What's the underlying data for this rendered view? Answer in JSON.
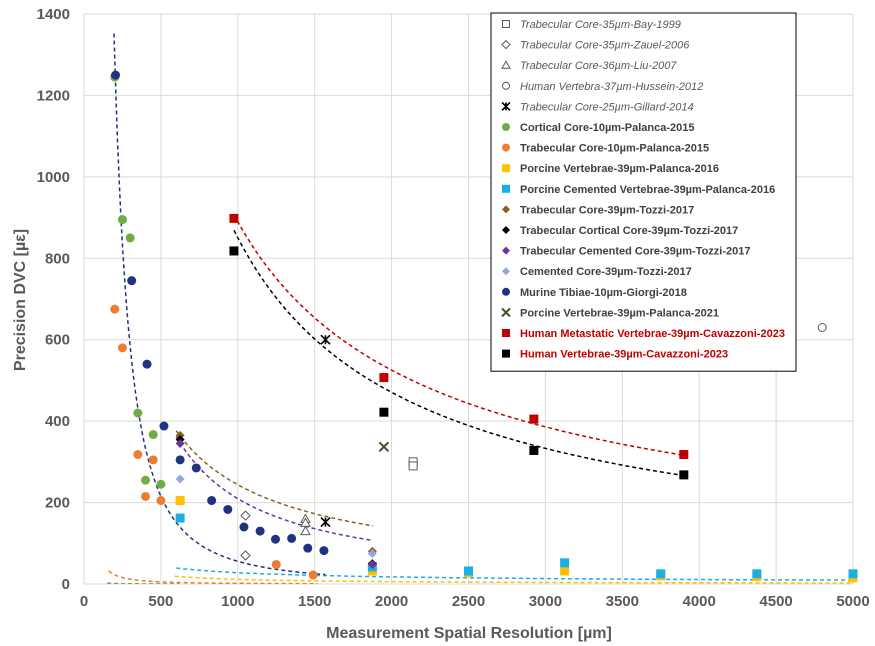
{
  "chart_data": {
    "type": "scatter",
    "xlabel": "Measurement Spatial Resolution [µm]",
    "ylabel": "Precision DVC [µε]",
    "xlim": [
      0,
      5000
    ],
    "ylim": [
      0,
      1400
    ],
    "x_ticks": [
      0,
      500,
      1000,
      1500,
      2000,
      2500,
      3000,
      3500,
      4000,
      4500,
      5000
    ],
    "y_ticks": [
      0,
      200,
      400,
      600,
      800,
      1000,
      1200,
      1400
    ],
    "grid": true,
    "legend_position": "top-right",
    "series": [
      {
        "name": "Trabecular Core-35µm-Bay-1999",
        "marker": "square-open",
        "color": "#595959",
        "italic": true,
        "text_color": "#595959",
        "points": [
          [
            2140,
            300
          ],
          [
            2140,
            290
          ]
        ],
        "fit": null
      },
      {
        "name": "Trabecular Core-35µm-Zauel-2006",
        "marker": "diamond-open",
        "color": "#595959",
        "italic": true,
        "text_color": "#595959",
        "points": [
          [
            1050,
            168
          ],
          [
            1050,
            70
          ]
        ],
        "fit": null
      },
      {
        "name": "Trabecular Core-36µm-Liu-2007",
        "marker": "triangle-open",
        "color": "#595959",
        "italic": true,
        "text_color": "#595959",
        "points": [
          [
            1440,
            160
          ],
          [
            1440,
            150
          ],
          [
            1440,
            130
          ]
        ],
        "fit": null
      },
      {
        "name": "Human Vertebra-37µm-Hussein-2012",
        "marker": "circle-open",
        "color": "#595959",
        "italic": true,
        "text_color": "#595959",
        "points": [
          [
            4800,
            630
          ]
        ],
        "fit": null
      },
      {
        "name": "Trabecular Core-25µm-Gillard-2014",
        "marker": "star",
        "color": "#000000",
        "italic": true,
        "text_color": "#595959",
        "points": [
          [
            1570,
            600
          ],
          [
            1570,
            152
          ]
        ],
        "fit": null
      },
      {
        "name": "Cortical Core-10µm-Palanca-2015",
        "marker": "circle",
        "color": "#70ad47",
        "italic": false,
        "text_color": "#404040",
        "points": [
          [
            200,
            1245
          ],
          [
            250,
            895
          ],
          [
            300,
            850
          ],
          [
            350,
            420
          ],
          [
            400,
            255
          ],
          [
            450,
            367
          ],
          [
            500,
            245
          ]
        ],
        "fit": {
          "a": 49000,
          "b": -2.0,
          "x_from": 150,
          "x_to": 620
        }
      },
      {
        "name": "Trabecular Core-10µm-Palanca-2015",
        "marker": "circle",
        "color": "#ed7d31",
        "italic": false,
        "text_color": "#404040",
        "points": [
          [
            200,
            675
          ],
          [
            250,
            580
          ],
          [
            350,
            318
          ],
          [
            400,
            215
          ],
          [
            450,
            305
          ],
          [
            500,
            205
          ],
          [
            1250,
            48
          ],
          [
            1490,
            22
          ]
        ],
        "fit": {
          "a": 108000,
          "b": -1.6,
          "x_from": 160,
          "x_to": 1520
        }
      },
      {
        "name": "Porcine Vertebrae-39µm-Palanca-2016",
        "marker": "square",
        "color": "#ffc000",
        "italic": false,
        "text_color": "#404040",
        "points": [
          [
            625,
            205
          ],
          [
            1875,
            32
          ],
          [
            2500,
            28
          ],
          [
            3125,
            32
          ],
          [
            3750,
            20
          ],
          [
            4375,
            18
          ],
          [
            5000,
            15
          ]
        ],
        "fit": {
          "a": 9300,
          "b": -0.97,
          "x_from": 590,
          "x_to": 5000
        }
      },
      {
        "name": "Porcine Cemented Vertebrae-39µm-Palanca-2016",
        "marker": "square",
        "color": "#1ab0e6",
        "italic": false,
        "text_color": "#404040",
        "points": [
          [
            625,
            162
          ],
          [
            1875,
            42
          ],
          [
            2500,
            32
          ],
          [
            3125,
            52
          ],
          [
            3750,
            25
          ],
          [
            4375,
            25
          ],
          [
            5000,
            25
          ]
        ],
        "fit": {
          "a": 2850,
          "b": -0.67,
          "x_from": 600,
          "x_to": 5000
        }
      },
      {
        "name": "Trabecular Core-39µm-Tozzi-2017",
        "marker": "diamond",
        "color": "#8b5f1a",
        "italic": false,
        "text_color": "#404040",
        "points": [
          [
            625,
            365
          ],
          [
            1875,
            80
          ]
        ],
        "fit": {
          "a": 86500,
          "b": -0.85,
          "x_from": 600,
          "x_to": 1880
        }
      },
      {
        "name": "Trabecular Cortical Core-39µm-Tozzi-2017",
        "marker": "diamond",
        "color": "#000000",
        "italic": false,
        "text_color": "#404040",
        "points": [
          [
            625,
            355
          ],
          [
            1875,
            50
          ]
        ],
        "fit": null
      },
      {
        "name": "Trabecular Cemented Core-39µm-Tozzi-2017",
        "marker": "diamond",
        "color": "#7030a0",
        "italic": false,
        "text_color": "#404040",
        "points": [
          [
            625,
            345
          ],
          [
            1875,
            48
          ]
        ],
        "fit": {
          "a": 340000,
          "b": -1.07,
          "x_from": 600,
          "x_to": 1880
        }
      },
      {
        "name": "Cemented Core-39µm-Tozzi-2017",
        "marker": "diamond",
        "color": "#8faadc",
        "italic": false,
        "text_color": "#404040",
        "points": [
          [
            625,
            258
          ],
          [
            1875,
            75
          ]
        ],
        "fit": null
      },
      {
        "name": "Murine Tibiae-10µm-Giorgi-2018",
        "marker": "circle",
        "color": "#1f3380",
        "italic": false,
        "text_color": "#404040",
        "points": [
          [
            205,
            1250
          ],
          [
            310,
            745
          ],
          [
            410,
            540
          ],
          [
            520,
            388
          ],
          [
            625,
            305
          ],
          [
            730,
            285
          ],
          [
            830,
            205
          ],
          [
            935,
            183
          ],
          [
            1040,
            140
          ],
          [
            1145,
            130
          ],
          [
            1245,
            110
          ],
          [
            1350,
            112
          ],
          [
            1455,
            88
          ],
          [
            1560,
            82
          ]
        ],
        "fit": {
          "a": 39500000,
          "b": -1.95,
          "x_from": 195,
          "x_to": 1570
        }
      },
      {
        "name": "Porcine Vertebrae-39µm-Palanca-2021",
        "marker": "x",
        "color": "#375623",
        "italic": false,
        "text_color": "#404040",
        "points": [
          [
            1950,
            337
          ]
        ],
        "fit": null
      },
      {
        "name": "Human Metastatic Vertebrae-39µm-Cavazzoni-2023",
        "marker": "square",
        "color": "#c00000",
        "italic": false,
        "text_color": "#c00000",
        "points": [
          [
            975,
            898
          ],
          [
            1950,
            507
          ],
          [
            2925,
            405
          ],
          [
            3900,
            318
          ]
        ],
        "fit": {
          "a": 169500,
          "b": -0.76,
          "x_from": 975,
          "x_to": 3900
        }
      },
      {
        "name": "Human Vertebrae-39µm-Cavazzoni-2023",
        "marker": "square",
        "color": "#000000",
        "italic": false,
        "text_color": "#c00000",
        "points": [
          [
            975,
            818
          ],
          [
            1950,
            422
          ],
          [
            2925,
            328
          ],
          [
            3900,
            268
          ]
        ],
        "fit": {
          "a": 308000,
          "b": -0.853,
          "x_from": 975,
          "x_to": 3900
        }
      }
    ]
  }
}
